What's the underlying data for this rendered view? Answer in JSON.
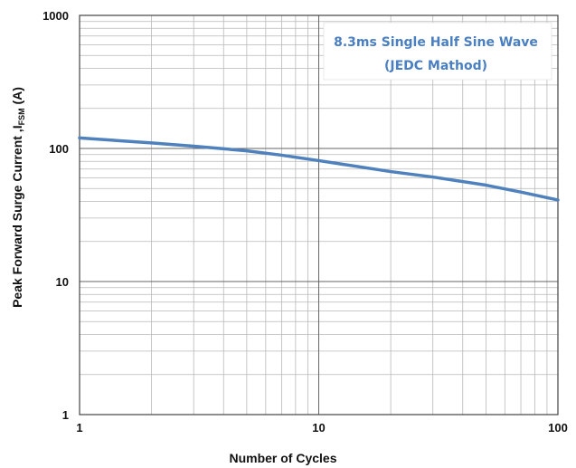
{
  "chart_data": {
    "type": "line",
    "xscale": "log",
    "yscale": "log",
    "xlim": [
      1,
      100
    ],
    "ylim": [
      1,
      1000
    ],
    "grid": true,
    "xlabel": "Number of Cycles",
    "ylabel": {
      "prefix": "Peak Forward Surge Current ,I",
      "subscript": "FSM",
      "suffix": " (A)"
    },
    "x_ticks": [
      {
        "value": 1,
        "label": "1"
      },
      {
        "value": 10,
        "label": "10"
      },
      {
        "value": 100,
        "label": "100"
      }
    ],
    "y_ticks": [
      {
        "value": 1,
        "label": "1"
      },
      {
        "value": 10,
        "label": "10"
      },
      {
        "value": 100,
        "label": "100"
      },
      {
        "value": 1000,
        "label": "1000"
      }
    ],
    "annotation": {
      "line1": "8.3ms Single Half Sine Wave",
      "line2": "(JEDC Mathod)"
    },
    "series": [
      {
        "color": "#4f81bd",
        "points": [
          {
            "x": 1,
            "y": 120
          },
          {
            "x": 2,
            "y": 110
          },
          {
            "x": 3,
            "y": 104
          },
          {
            "x": 5,
            "y": 96
          },
          {
            "x": 7,
            "y": 89
          },
          {
            "x": 10,
            "y": 81
          },
          {
            "x": 20,
            "y": 67
          },
          {
            "x": 30,
            "y": 61
          },
          {
            "x": 50,
            "y": 53
          },
          {
            "x": 70,
            "y": 47
          },
          {
            "x": 100,
            "y": 41
          }
        ]
      }
    ]
  }
}
